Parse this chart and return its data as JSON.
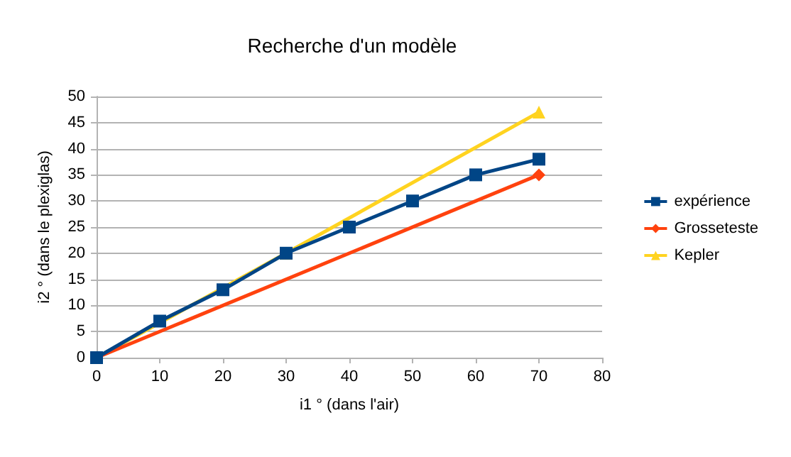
{
  "chart_data": {
    "type": "line",
    "title": "Recherche d'un modèle",
    "xlabel": "i1 ° (dans l'air)",
    "ylabel": "i2 ° (dans le plexiglas)",
    "xlim": [
      0,
      80
    ],
    "xticks": [
      0,
      10,
      20,
      30,
      40,
      50,
      60,
      70,
      80
    ],
    "ylim": [
      0,
      50
    ],
    "yticks": [
      0,
      5,
      10,
      15,
      20,
      25,
      30,
      35,
      40,
      45,
      50
    ],
    "grid": "y",
    "legend": "right",
    "series": [
      {
        "name": "expérience",
        "color": "#004586",
        "marker": "square",
        "x": [
          0,
          10,
          20,
          30,
          40,
          50,
          60,
          70
        ],
        "values": [
          0,
          7,
          13,
          20,
          25,
          30,
          35,
          38
        ]
      },
      {
        "name": "Grosseteste",
        "color": "#ff420e",
        "marker": "diamond",
        "x": [
          0,
          70
        ],
        "values": [
          0,
          35
        ]
      },
      {
        "name": "Kepler",
        "color": "#ffd320",
        "marker": "triangle",
        "x": [
          0,
          30,
          70
        ],
        "values": [
          0,
          20,
          47
        ]
      }
    ]
  }
}
